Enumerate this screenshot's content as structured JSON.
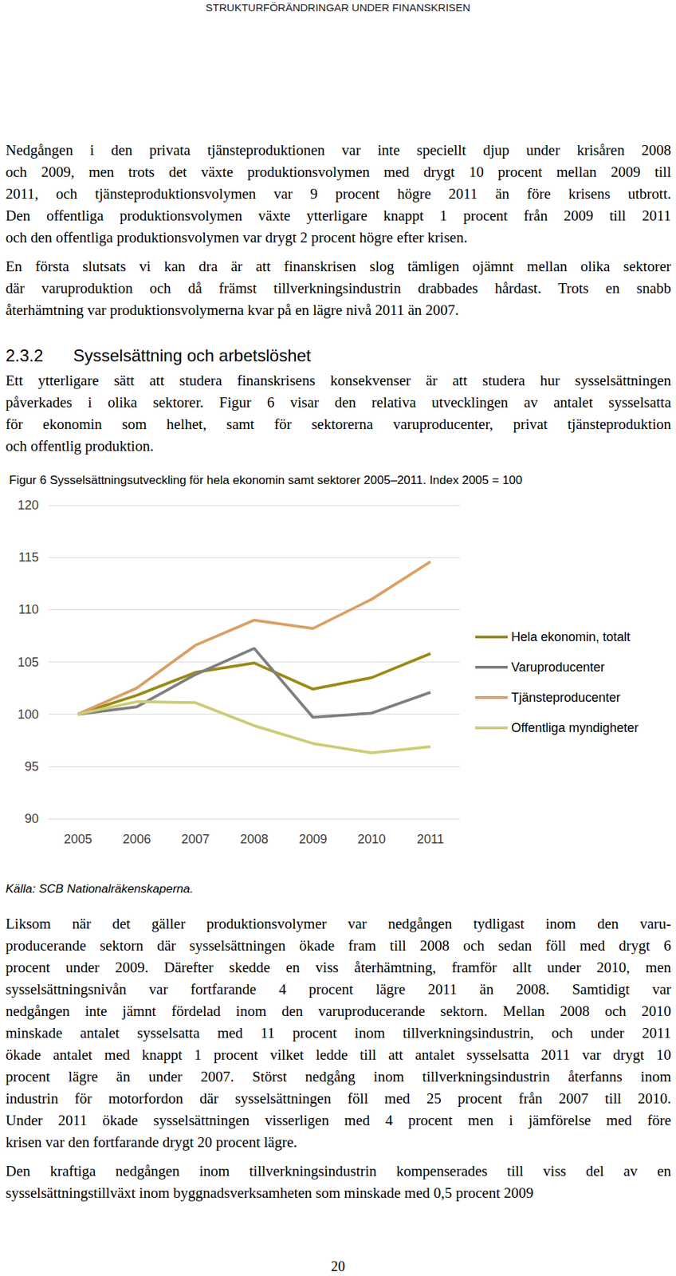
{
  "header": "STRUKTURFÖRÄNDRINGAR UNDER FINANSKRISEN",
  "paragraphs_top": [
    [
      "Nedgången i den privata tjänsteproduktionen var inte speciellt djup under krisåren 2008",
      "och 2009, men trots det växte produktionsvolymen med drygt 10 procent mellan 2009 till",
      "2011, och tjänsteproduktionsvolymen var 9 procent högre 2011 än före krisens utbrott.",
      "Den offentliga produktionsvolymen växte ytterligare knappt 1 procent från 2009 till 2011",
      "och den offentliga produktionsvolymen var drygt 2 procent högre efter krisen."
    ],
    [
      "En första slutsats vi kan dra är att finanskrisen slog tämligen ojämnt mellan olika sektorer",
      "där varuproduktion och då främst tillverkningsindustrin drabbades hårdast. Trots en snabb",
      "återhämtning var produktionsvolymerna kvar på en lägre nivå 2011 än 2007."
    ]
  ],
  "heading": {
    "number": "2.3.2",
    "text": "Sysselsättning och arbetslöshet"
  },
  "paragraph_intro": [
    "Ett ytterligare sätt att studera finanskrisens konsekvenser är att studera hur sysselsättningen",
    "påverkades i olika sektorer. Figur 6 visar den relativa utvecklingen av antalet sysselsatta",
    "för ekonomin som helhet, samt för sektorerna varuproducenter, privat tjänsteproduktion",
    "och offentlig produktion."
  ],
  "chart_data": {
    "type": "line",
    "title": "Figur 6 Sysselsättningsutveckling för hela ekonomin samt sektorer 2005–2011. Index 2005 = 100",
    "categories": [
      "2005",
      "2006",
      "2007",
      "2008",
      "2009",
      "2010",
      "2011"
    ],
    "series": [
      {
        "name": "Hela ekonomin, totalt",
        "color": "#9a8a14",
        "values": [
          100,
          101.8,
          104.0,
          104.9,
          102.4,
          103.5,
          105.8
        ]
      },
      {
        "name": "Varuproducenter",
        "color": "#7f7f7f",
        "values": [
          100,
          100.7,
          103.8,
          106.3,
          99.7,
          100.1,
          102.1
        ]
      },
      {
        "name": "Tjänsteproducenter",
        "color": "#d9a066",
        "values": [
          100,
          102.5,
          106.6,
          109.0,
          108.2,
          111.0,
          114.6
        ]
      },
      {
        "name": "Offentliga myndigheter",
        "color": "#cccc77",
        "values": [
          100,
          101.2,
          101.1,
          98.9,
          97.2,
          96.3,
          96.9
        ]
      }
    ],
    "ylim": [
      90,
      120
    ],
    "yticks": [
      90,
      95,
      100,
      105,
      110,
      115,
      120
    ],
    "grid": true,
    "legend": "right",
    "marker": "none"
  },
  "source": "Källa: SCB Nationalräkenskaperna.",
  "paragraphs_bottom": [
    [
      "Liksom när det gäller produktionsvolymer var nedgången tydligast inom den varu-",
      "producerande sektorn där sysselsättningen ökade fram till 2008 och sedan föll med drygt 6",
      "procent under 2009. Därefter skedde en viss återhämtning, framför allt under 2010, men",
      "sysselsättningsnivån var fortfarande 4 procent lägre 2011 än 2008. Samtidigt var",
      "nedgången inte jämnt fördelad inom den varuproducerande sektorn. Mellan 2008 och 2010",
      "minskade antalet sysselsatta med 11 procent inom tillverkningsindustrin, och under 2011",
      "ökade antalet med knappt 1 procent vilket ledde till att antalet sysselsatta 2011 var drygt 10",
      "procent lägre än under 2007. Störst nedgång inom tillverkningsindustrin återfanns inom",
      "industrin för motorfordon där sysselsättningen föll med 25 procent från 2007 till 2010.",
      "Under 2011 ökade sysselsättningen visserligen med 4 procent men i jämförelse med före",
      "krisen var den fortfarande drygt 20 procent lägre."
    ],
    [
      "Den kraftiga nedgången inom tillverkningsindustrin kompenserades till viss del av en",
      "sysselsättningstillväxt inom byggnadsverksamheten som minskade med 0,5 procent 2009"
    ]
  ],
  "page_number": "20"
}
